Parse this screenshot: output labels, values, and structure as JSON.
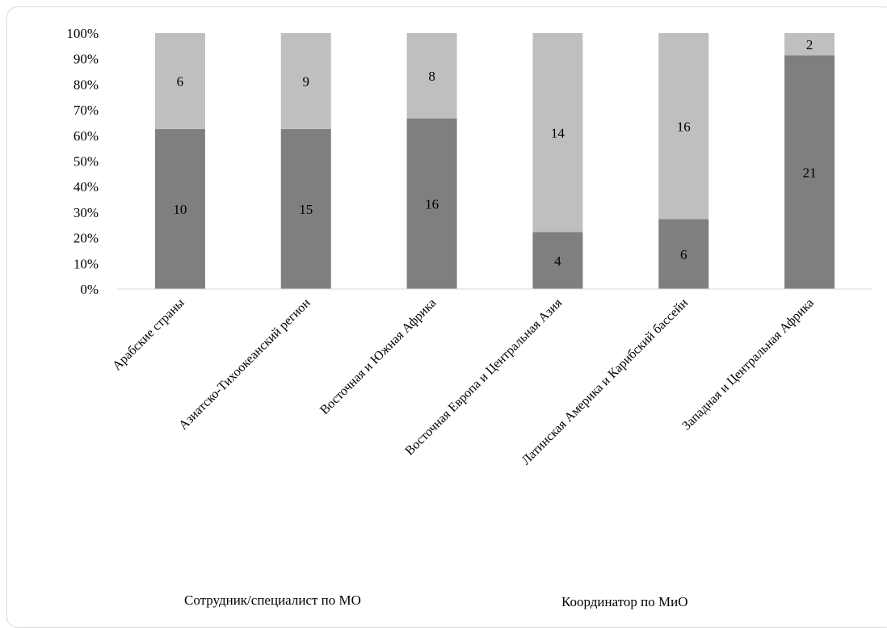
{
  "chart_data": {
    "type": "bar",
    "stacked": "percent",
    "categories": [
      "Арабские страны",
      "Азиатско-Тихоокеанский регион",
      "Восточная и Южная Африка",
      "Восточная Европа и Центральная Азия",
      "Латинская Америка и Карибский бассейн",
      "Западная и Центральная Африка"
    ],
    "series": [
      {
        "name": "Сотрудник/специалист по МО",
        "values": [
          10,
          15,
          16,
          4,
          6,
          21
        ],
        "color": "#7f7f7f"
      },
      {
        "name": "Координатор по МиО",
        "values": [
          6,
          9,
          8,
          14,
          16,
          2
        ],
        "color": "#bfbfbf"
      }
    ],
    "yticks": [
      "0%",
      "10%",
      "20%",
      "30%",
      "40%",
      "50%",
      "60%",
      "70%",
      "80%",
      "90%",
      "100%"
    ],
    "ylim": [
      0,
      100
    ],
    "grid": false,
    "legend_position": "bottom"
  }
}
